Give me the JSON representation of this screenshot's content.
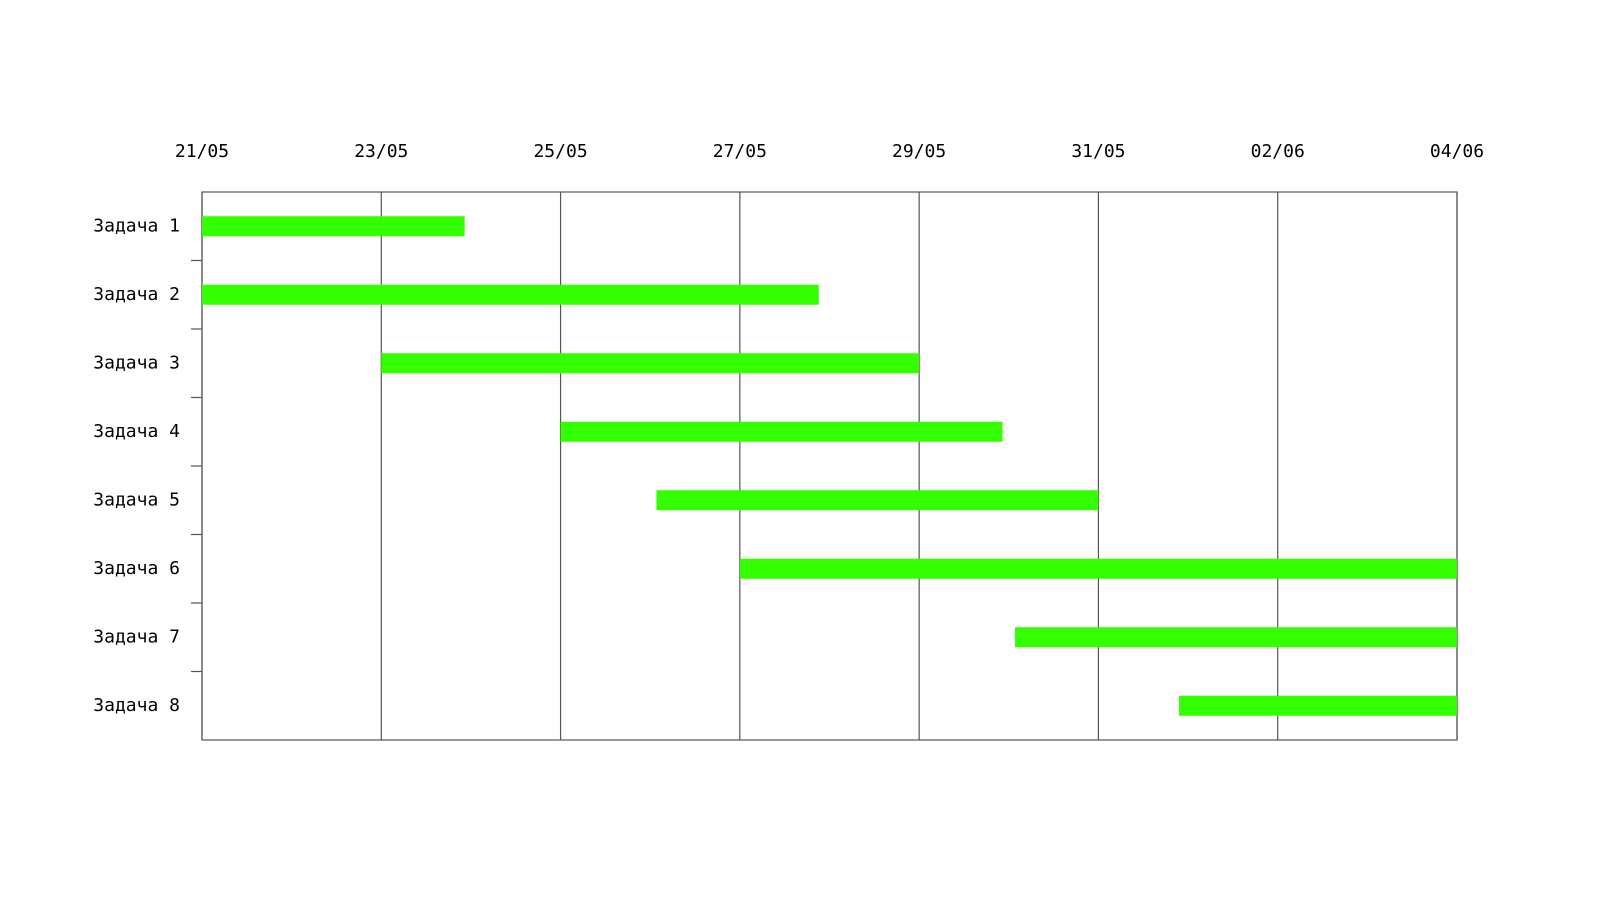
{
  "chart_data": {
    "type": "gantt",
    "categories": [
      "Задача 1",
      "Задача 2",
      "Задача 3",
      "Задача 4",
      "Задача 5",
      "Задача 6",
      "Задача 7",
      "Задача 8"
    ],
    "starts": [
      0,
      0,
      2,
      4,
      5.07,
      6,
      9.07,
      10.9
    ],
    "ends": [
      2.93,
      6.88,
      8,
      8.93,
      10,
      14,
      14,
      14
    ],
    "color": "#33ff00",
    "xlim": [
      0,
      14
    ],
    "xticks": [
      {
        "value": 0,
        "label": "21/05"
      },
      {
        "value": 2,
        "label": "23/05"
      },
      {
        "value": 4,
        "label": "25/05"
      },
      {
        "value": 6,
        "label": "27/05"
      },
      {
        "value": 8,
        "label": "29/05"
      },
      {
        "value": 10,
        "label": "31/05"
      },
      {
        "value": 12,
        "label": "02/06"
      },
      {
        "value": 14,
        "label": "04/06"
      }
    ],
    "grid": true
  }
}
